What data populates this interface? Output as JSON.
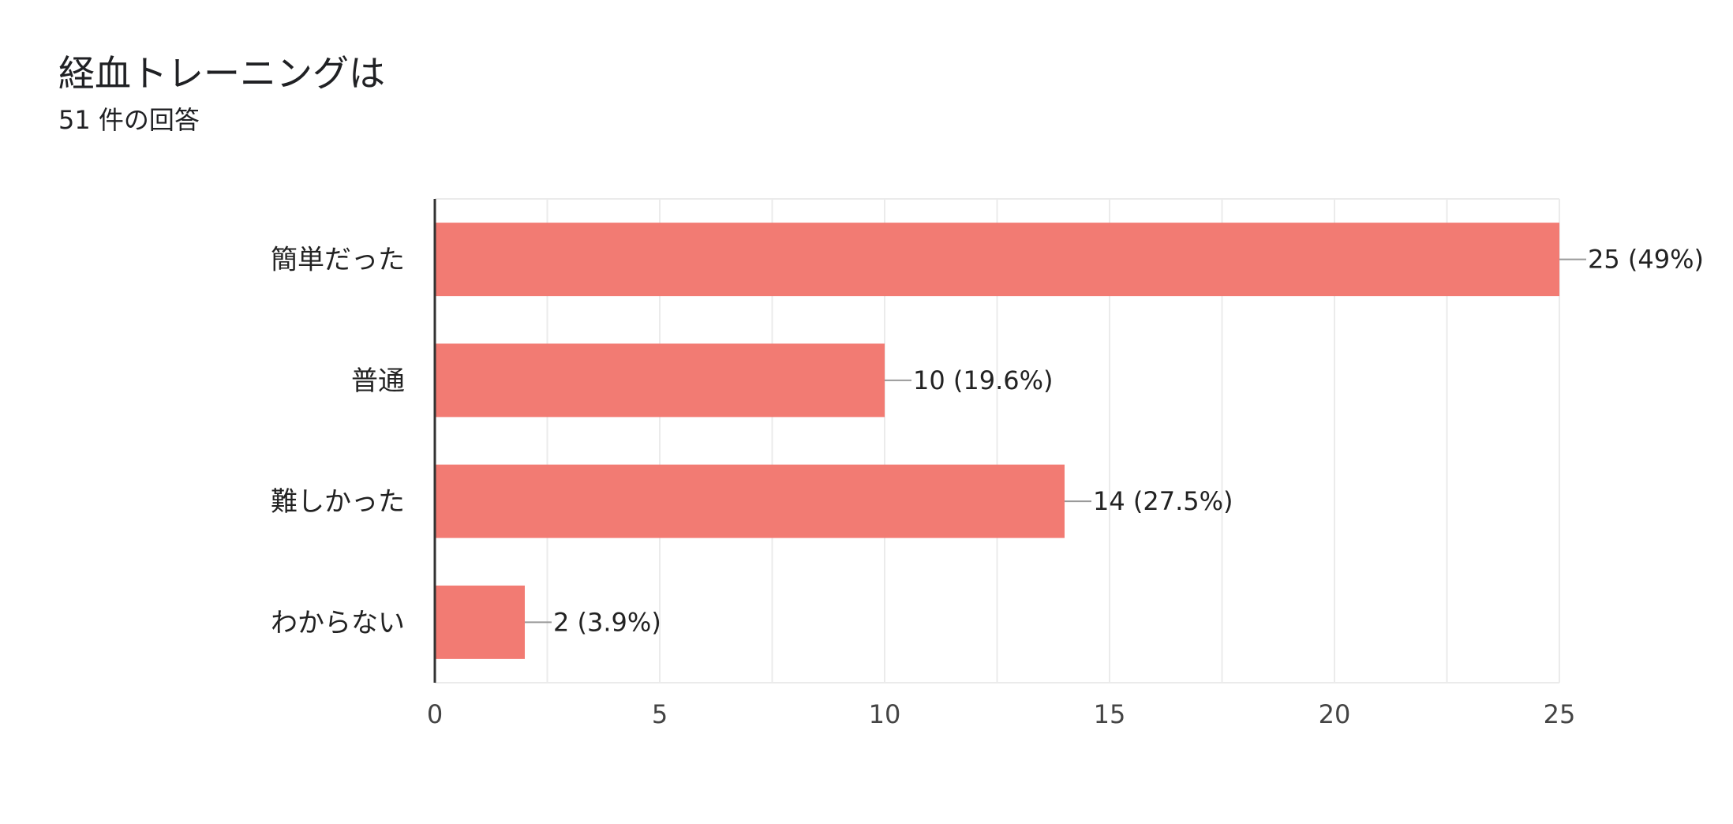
{
  "header": {
    "title": "経血トレーニングは",
    "subtitle": "51 件の回答"
  },
  "chart_data": {
    "type": "bar",
    "orientation": "horizontal",
    "title": "経血トレーニングは",
    "subtitle": "51 件の回答",
    "categories": [
      "簡単だった",
      "普通",
      "難しかった",
      "わからない"
    ],
    "values": [
      25,
      10,
      14,
      2
    ],
    "data_labels": [
      "25 (49%)",
      "10 (19.6%)",
      "14 (27.5%)",
      "2 (3.9%)"
    ],
    "xlim": [
      0,
      25
    ],
    "xticks": [
      0,
      5,
      10,
      15,
      20,
      25
    ],
    "xlabel": "",
    "ylabel": "",
    "grid": true,
    "legend": "none",
    "bar_color": "#f27b73",
    "grid_color": "#ebebeb",
    "axis_color": "#333333",
    "leader_color": "#999999"
  }
}
